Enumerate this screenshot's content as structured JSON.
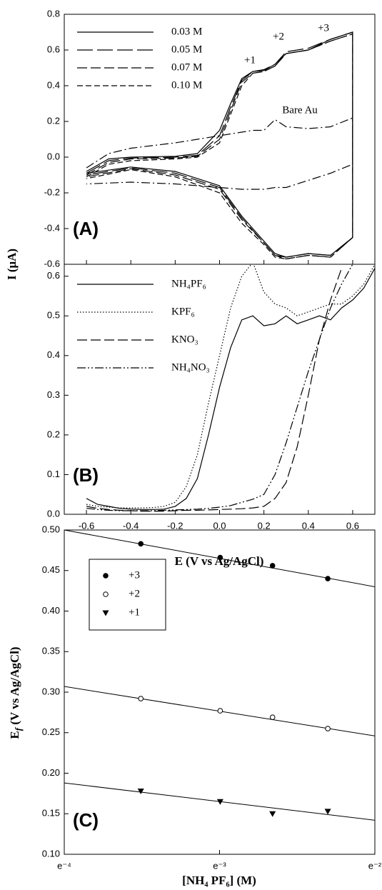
{
  "chart_data": [
    {
      "type": "line",
      "panel_label": "(A)",
      "ylabel": "I (μA)",
      "xlim": [
        -0.7,
        0.7
      ],
      "xticks": [
        -0.6,
        -0.4,
        -0.2,
        0,
        0.2,
        0.4,
        0.6
      ],
      "xtick_labels": false,
      "ylim": [
        -0.6,
        0.8
      ],
      "yticks": [
        {
          "value": -0.6,
          "label": "-0.6"
        },
        {
          "value": -0.4,
          "label": "-0.4"
        },
        {
          "value": -0.2,
          "label": "-0.2"
        },
        {
          "value": 0,
          "label": "0.0"
        },
        {
          "value": 0.2,
          "label": "0.2"
        },
        {
          "value": 0.4,
          "label": "0.4"
        },
        {
          "value": 0.6,
          "label": "0.6"
        },
        {
          "value": 0.8,
          "label": "0.8"
        }
      ],
      "x": [
        -0.6,
        -0.5,
        -0.4,
        -0.2,
        -0.1,
        0,
        0.05,
        0.1,
        0.15,
        0.2,
        0.25,
        0.3,
        0.4,
        0.5,
        0.6,
        0.6,
        0.5,
        0.4,
        0.3,
        0.25,
        0.2,
        0.1,
        0,
        -0.2,
        -0.4,
        -0.6
      ],
      "series": [
        {
          "name": "0.03 M",
          "color": "#000000",
          "style": "solid",
          "values": [
            -0.08,
            -0.01,
            0.0,
            0.005,
            0.02,
            0.15,
            0.3,
            0.44,
            0.48,
            0.485,
            0.52,
            0.58,
            0.6,
            0.66,
            0.7,
            -0.45,
            -0.55,
            -0.54,
            -0.56,
            -0.54,
            -0.47,
            -0.33,
            -0.16,
            -0.08,
            -0.055,
            -0.09
          ]
        },
        {
          "name": "0.05 M",
          "color": "#000000",
          "style": "longdash",
          "values": [
            -0.09,
            -0.02,
            -0.005,
            0.0,
            0.01,
            0.12,
            0.28,
            0.43,
            0.48,
            0.49,
            0.52,
            0.59,
            0.61,
            0.66,
            0.7,
            -0.45,
            -0.55,
            -0.54,
            -0.56,
            -0.55,
            -0.48,
            -0.34,
            -0.17,
            -0.09,
            -0.06,
            -0.1
          ]
        },
        {
          "name": "0.07 M",
          "color": "#000000",
          "style": "dash",
          "values": [
            -0.1,
            -0.03,
            -0.01,
            -0.005,
            0.005,
            0.1,
            0.26,
            0.42,
            0.47,
            0.48,
            0.51,
            0.58,
            0.6,
            0.65,
            0.69,
            -0.45,
            -0.56,
            -0.55,
            -0.57,
            -0.55,
            -0.48,
            -0.35,
            -0.18,
            -0.1,
            -0.065,
            -0.11
          ]
        },
        {
          "name": "0.10 M",
          "color": "#000000",
          "style": "shortdash",
          "values": [
            -0.11,
            -0.04,
            -0.02,
            -0.01,
            0.0,
            0.08,
            0.24,
            0.4,
            0.47,
            0.48,
            0.51,
            0.58,
            0.6,
            0.65,
            0.69,
            -0.45,
            -0.56,
            -0.55,
            -0.57,
            -0.56,
            -0.49,
            -0.37,
            -0.2,
            -0.11,
            -0.07,
            -0.12
          ]
        },
        {
          "name": "Bare Au",
          "color": "#000000",
          "style": "dashdot",
          "label_on_curve": true,
          "values": [
            -0.06,
            0.02,
            0.05,
            0.08,
            0.1,
            0.12,
            0.13,
            0.14,
            0.15,
            0.15,
            0.21,
            0.17,
            0.16,
            0.17,
            0.22,
            -0.04,
            -0.09,
            -0.13,
            -0.17,
            -0.17,
            -0.18,
            -0.18,
            -0.17,
            -0.15,
            -0.14,
            -0.15
          ]
        }
      ],
      "annotations": [
        "+1",
        "+2",
        "+3"
      ]
    },
    {
      "type": "line",
      "panel_label": "(B)",
      "xlabel": "E (V vs Ag/AgCl)",
      "xlim": [
        -0.7,
        0.7
      ],
      "xticks": [
        {
          "value": -0.6,
          "label": "-0.6"
        },
        {
          "value": -0.4,
          "label": "-0.4"
        },
        {
          "value": -0.2,
          "label": "-0.2"
        },
        {
          "value": 0,
          "label": "0.0"
        },
        {
          "value": 0.2,
          "label": "0.2"
        },
        {
          "value": 0.4,
          "label": "0.4"
        },
        {
          "value": 0.6,
          "label": "0.6"
        }
      ],
      "ylim": [
        0,
        0.63
      ],
      "yticks": [
        {
          "value": 0,
          "label": "0.0"
        },
        {
          "value": 0.1,
          "label": "0.1"
        },
        {
          "value": 0.2,
          "label": "0.2"
        },
        {
          "value": 0.3,
          "label": "0.3"
        },
        {
          "value": 0.4,
          "label": "0.4"
        },
        {
          "value": 0.5,
          "label": "0.5"
        },
        {
          "value": 0.6,
          "label": "0.6"
        }
      ],
      "x": [
        -0.6,
        -0.55,
        -0.5,
        -0.45,
        -0.4,
        -0.35,
        -0.3,
        -0.25,
        -0.2,
        -0.15,
        -0.1,
        -0.05,
        0,
        0.05,
        0.1,
        0.15,
        0.2,
        0.25,
        0.3,
        0.35,
        0.4,
        0.45,
        0.5,
        0.55,
        0.6,
        0.65,
        0.7
      ],
      "series": [
        {
          "name": "NH₄PF₆",
          "color": "#000000",
          "style": "solid",
          "values": [
            0.04,
            0.025,
            0.02,
            0.015,
            0.013,
            0.012,
            0.012,
            0.013,
            0.02,
            0.04,
            0.09,
            0.2,
            0.32,
            0.42,
            0.49,
            0.5,
            0.475,
            0.48,
            0.5,
            0.48,
            0.49,
            0.5,
            0.49,
            0.52,
            0.54,
            0.57,
            0.62
          ]
        },
        {
          "name": "KPF₆",
          "color": "#000000",
          "style": "dot",
          "values": [
            0.025,
            0.02,
            0.018,
            0.016,
            0.016,
            0.016,
            0.017,
            0.02,
            0.03,
            0.07,
            0.15,
            0.28,
            0.4,
            0.52,
            0.6,
            0.635,
            0.56,
            0.53,
            0.52,
            0.5,
            0.51,
            0.52,
            0.53,
            0.53,
            0.55,
            0.58,
            0.63
          ]
        },
        {
          "name": "KNO₃",
          "color": "#000000",
          "style": "dash",
          "values": [
            0.02,
            0.015,
            0.012,
            0.01,
            0.009,
            0.008,
            0.008,
            0.008,
            0.009,
            0.01,
            0.01,
            0.011,
            0.012,
            0.013,
            0.014,
            0.016,
            0.02,
            0.04,
            0.08,
            0.17,
            0.3,
            0.44,
            0.54,
            0.62,
            null,
            null,
            null
          ]
        },
        {
          "name": "NH₄NO₃",
          "color": "#000000",
          "style": "dashdotdot",
          "values": [
            0.015,
            0.012,
            0.01,
            0.009,
            0.009,
            0.009,
            0.009,
            0.01,
            0.011,
            0.012,
            0.013,
            0.015,
            0.018,
            0.022,
            0.03,
            0.038,
            0.05,
            0.1,
            0.18,
            0.27,
            0.36,
            0.44,
            0.52,
            0.58,
            0.63,
            null,
            null
          ]
        }
      ]
    },
    {
      "type": "scatter",
      "panel_label": "(C)",
      "xlabel": "[NH₄ PF₆] (M)",
      "ylabel": [
        "E",
        "f",
        " (V vs Ag/AgCl)"
      ],
      "xlim": [
        -4,
        -2
      ],
      "xticks": [
        {
          "value": -4,
          "label": "e⁻⁴"
        },
        {
          "value": -3,
          "label": "e⁻³"
        },
        {
          "value": -2,
          "label": "e⁻²"
        }
      ],
      "ylim": [
        0.1,
        0.5
      ],
      "yticks": [
        {
          "value": 0.1,
          "label": "0.10"
        },
        {
          "value": 0.15,
          "label": "0.15"
        },
        {
          "value": 0.2,
          "label": "0.20"
        },
        {
          "value": 0.25,
          "label": "0.25"
        },
        {
          "value": 0.3,
          "label": "0.30"
        },
        {
          "value": 0.35,
          "label": "0.35"
        },
        {
          "value": 0.4,
          "label": "0.40"
        },
        {
          "value": 0.45,
          "label": "0.45"
        },
        {
          "value": 0.5,
          "label": "0.50"
        }
      ],
      "x": [
        -3.507,
        -2.996,
        -2.659,
        -2.303
      ],
      "series": [
        {
          "name": "+3",
          "color": "#000000",
          "marker": "filled-circle",
          "values": [
            0.483,
            0.466,
            0.456,
            0.44
          ],
          "fit": {
            "x": [
              -4,
              -2
            ],
            "values": [
              0.5,
              0.43
            ]
          }
        },
        {
          "name": "+2",
          "color": "#000000",
          "marker": "open-circle",
          "values": [
            0.292,
            0.277,
            0.269,
            0.255
          ],
          "fit": {
            "x": [
              -4,
              -2
            ],
            "values": [
              0.307,
              0.246
            ]
          }
        },
        {
          "name": "+1",
          "color": "#000000",
          "marker": "triangle-down",
          "values": [
            0.178,
            0.165,
            0.15,
            0.153
          ],
          "fit": {
            "x": [
              -4,
              -2
            ],
            "values": [
              0.188,
              0.142
            ]
          }
        }
      ]
    }
  ]
}
